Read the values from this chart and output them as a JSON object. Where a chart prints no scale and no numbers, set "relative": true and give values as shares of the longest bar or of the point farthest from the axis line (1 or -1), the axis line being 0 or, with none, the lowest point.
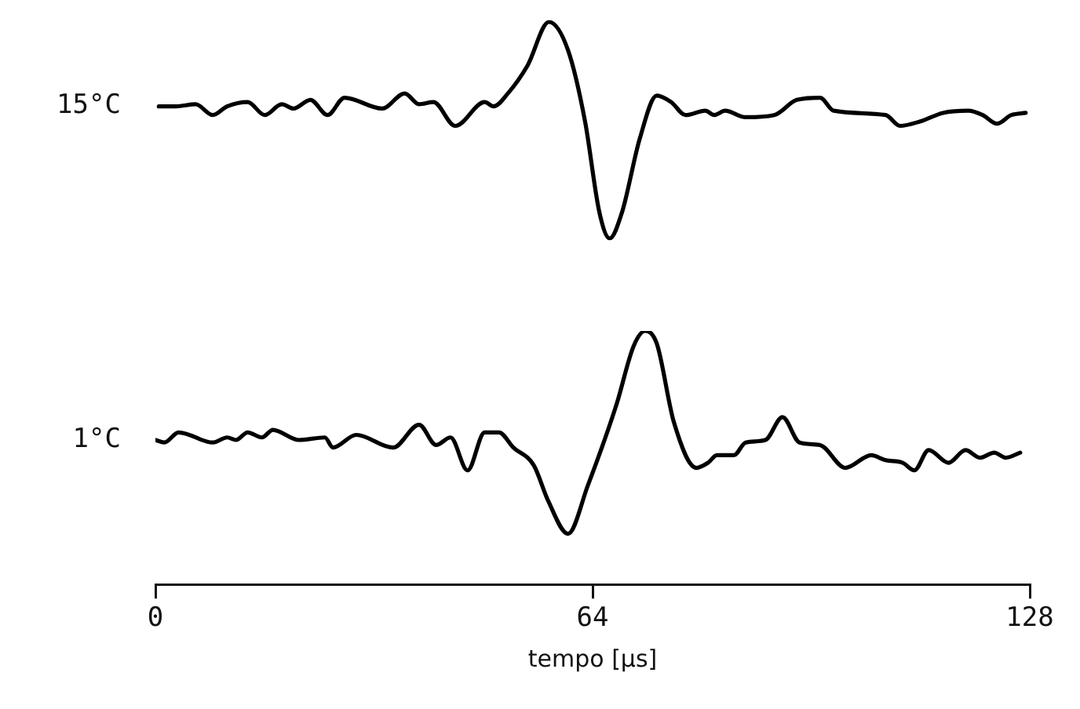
{
  "chart_data": [
    {
      "type": "line",
      "relative": true,
      "xlim": [
        0,
        128
      ],
      "tick_labels": false,
      "series": [
        {
          "name": "15°C",
          "color": "#000000",
          "x": [
            0.5,
            3.0,
            5.9,
            8.4,
            10.5,
            13.5,
            16.0,
            18.5,
            20.2,
            22.7,
            25.2,
            27.7,
            33.2,
            36.5,
            38.6,
            40.7,
            43.9,
            48.2,
            49.5,
            51.6,
            54.5,
            57.6,
            60.4,
            62.9,
            65.0,
            66.5,
            68.3,
            70.9,
            73.4,
            75.5,
            77.6,
            80.5,
            81.8,
            83.4,
            86.4,
            90.6,
            93.9,
            97.3,
            99.3,
            106.9,
            109.0,
            111.9,
            115.3,
            119.0,
            121.1,
            123.2,
            125.3,
            127.4
          ],
          "values": [
            0.61,
            0.61,
            0.62,
            0.57,
            0.61,
            0.63,
            0.57,
            0.62,
            0.6,
            0.64,
            0.57,
            0.65,
            0.6,
            0.67,
            0.62,
            0.63,
            0.52,
            0.63,
            0.61,
            0.67,
            0.8,
            1.0,
            0.87,
            0.54,
            0.12,
            0,
            0.12,
            0.46,
            0.66,
            0.63,
            0.57,
            0.59,
            0.57,
            0.59,
            0.56,
            0.57,
            0.64,
            0.65,
            0.59,
            0.57,
            0.52,
            0.54,
            0.58,
            0.59,
            0.57,
            0.53,
            0.57,
            0.58
          ]
        }
      ]
    },
    {
      "type": "line",
      "relative": true,
      "xlim": [
        0,
        128
      ],
      "xticks": [
        0,
        64,
        128
      ],
      "xlabel": "tempo [µs]",
      "tick_labels": "x",
      "series": [
        {
          "name": "1°C",
          "color": "#000000",
          "x": [
            0,
            1.3,
            3.4,
            8.4,
            10.5,
            11.8,
            13.5,
            15.6,
            17.2,
            21.0,
            24.8,
            26.0,
            29.4,
            34.8,
            38.6,
            41.1,
            43.2,
            45.7,
            48.2,
            50.3,
            52.4,
            55.4,
            57.5,
            60.4,
            63.3,
            67.5,
            70.0,
            71.7,
            73.4,
            75.9,
            79.2,
            80.9,
            82.2,
            84.7,
            86.4,
            89.3,
            91.8,
            94.3,
            97.3,
            101.0,
            104.8,
            106.9,
            109.4,
            111.1,
            113.2,
            116.1,
            118.6,
            120.7,
            122.8,
            124.5,
            126.6
          ],
          "values": [
            0.57,
            0.56,
            0.6,
            0.56,
            0.58,
            0.57,
            0.6,
            0.58,
            0.61,
            0.57,
            0.58,
            0.54,
            0.59,
            0.54,
            0.63,
            0.55,
            0.58,
            0.45,
            0.6,
            0.6,
            0.54,
            0.47,
            0.33,
            0.2,
            0.39,
            0.71,
            0.94,
            1.0,
            0.95,
            0.64,
            0.46,
            0.48,
            0.51,
            0.51,
            0.56,
            0.57,
            0.66,
            0.56,
            0.55,
            0.46,
            0.51,
            0.49,
            0.48,
            0.45,
            0.53,
            0.48,
            0.53,
            0.5,
            0.52,
            0.5,
            0.52
          ]
        }
      ]
    }
  ]
}
